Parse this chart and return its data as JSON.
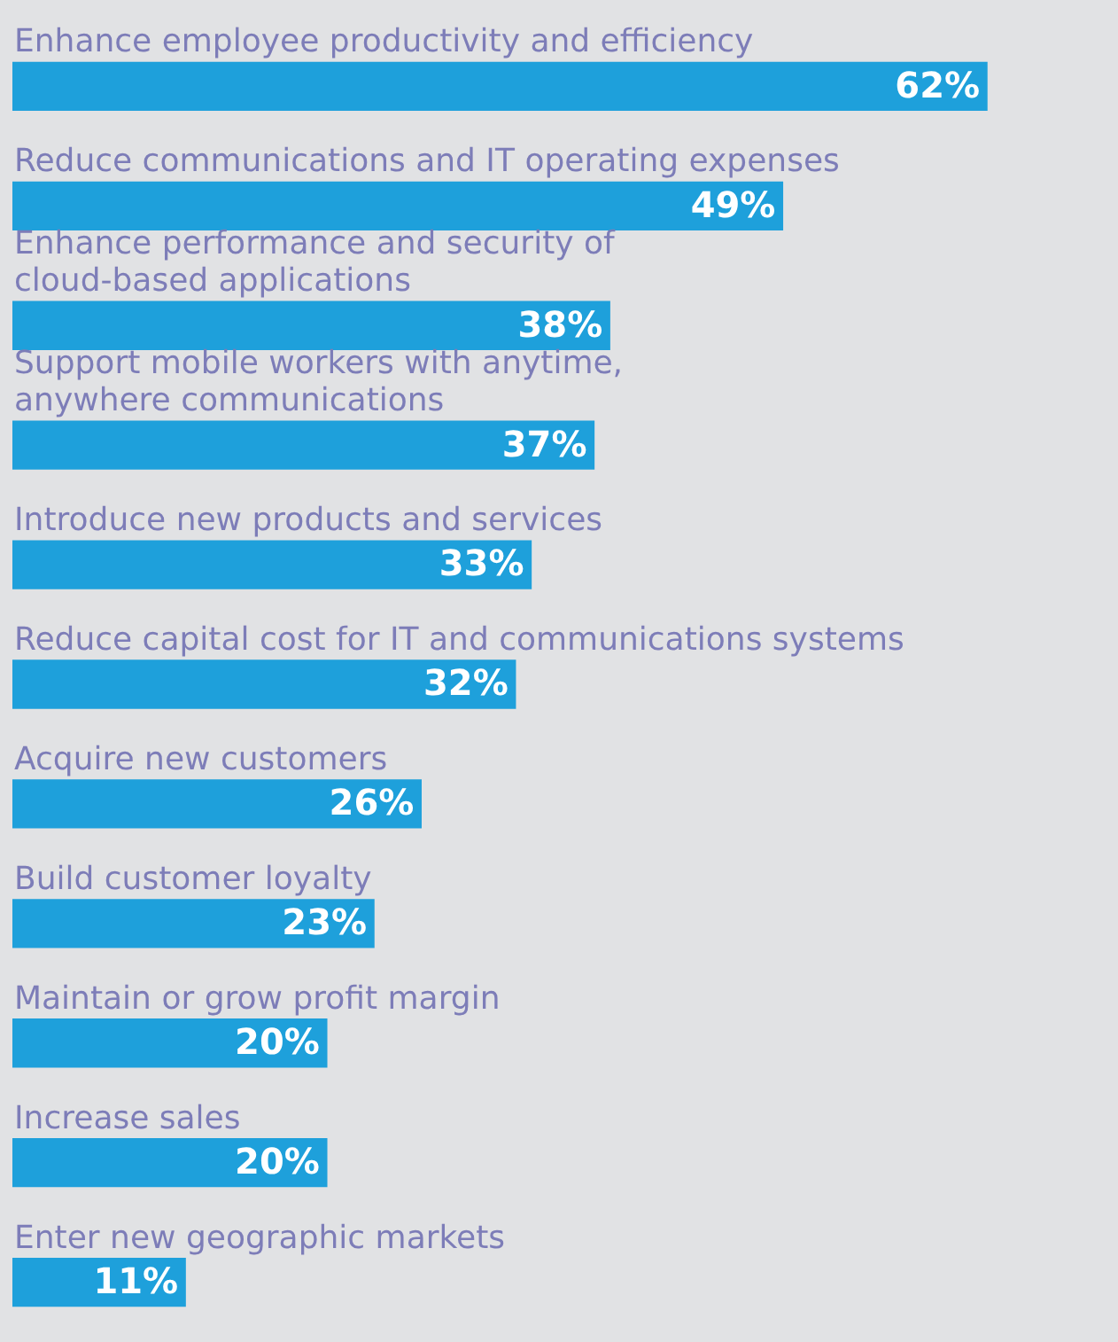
{
  "chart_data": {
    "type": "bar",
    "orientation": "horizontal",
    "categories": [
      "Enhance employee productivity and efficiency",
      "Reduce communications and IT operating expenses",
      "Enhance performance and security of\ncloud-based applications",
      "Support mobile workers with anytime,\nanywhere communications",
      "Introduce new products and services",
      "Reduce capital cost for IT and communications systems",
      "Acquire new customers",
      "Build customer loyalty",
      "Maintain or grow profit margin",
      "Increase sales",
      "Enter new geographic markets"
    ],
    "values": [
      62,
      49,
      38,
      37,
      33,
      32,
      26,
      23,
      20,
      20,
      11
    ],
    "value_labels": [
      "62%",
      "49%",
      "38%",
      "37%",
      "33%",
      "32%",
      "26%",
      "23%",
      "20%",
      "20%",
      "11%"
    ],
    "color": "#1ea0db"
  }
}
